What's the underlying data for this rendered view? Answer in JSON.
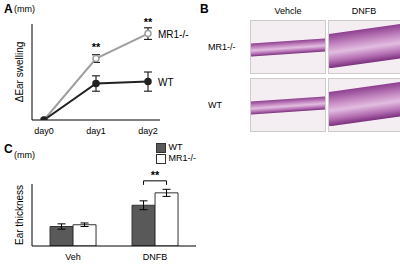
{
  "chart_data": [
    {
      "panel": "A",
      "type": "line",
      "y_label": "ΔEar swelling",
      "y_unit": "(mm)",
      "categories": [
        "day0",
        "day1",
        "day2"
      ],
      "series": [
        {
          "name": "MR1-/-",
          "color": "#9e9e9e",
          "marker": "circle",
          "values": [
            0,
            0.32,
            0.45
          ],
          "errors": [
            0,
            0.02,
            0.03
          ]
        },
        {
          "name": "WT",
          "color": "#222222",
          "marker": "circle",
          "values": [
            0,
            0.19,
            0.2
          ],
          "errors": [
            0,
            0.04,
            0.05
          ]
        }
      ],
      "ylim": [
        0,
        0.5
      ],
      "tick_labels": "x",
      "annotations": [
        {
          "x": "day1",
          "text": "**"
        },
        {
          "x": "day2",
          "text": "**"
        }
      ]
    },
    {
      "panel": "C",
      "type": "bar",
      "y_label": "Ear thickness",
      "y_unit": "(mm)",
      "categories": [
        "Veh",
        "DNFB"
      ],
      "series": [
        {
          "name": "WT",
          "color": "#595959",
          "values": [
            0.22,
            0.46
          ],
          "errors": [
            0.03,
            0.05
          ]
        },
        {
          "name": "MR1-/-",
          "color": "#ffffff",
          "values": [
            0.24,
            0.6
          ],
          "errors": [
            0.02,
            0.04
          ]
        }
      ],
      "ylim": [
        0,
        0.7
      ],
      "tick_labels": "x",
      "legend": "top-right",
      "annotations": [
        {
          "x": "DNFB",
          "text": "**"
        }
      ]
    }
  ],
  "images": {
    "panel": "B",
    "columns": [
      "Vehcle",
      "DNFB"
    ],
    "rows": [
      "MR1-/-",
      "WT"
    ]
  }
}
